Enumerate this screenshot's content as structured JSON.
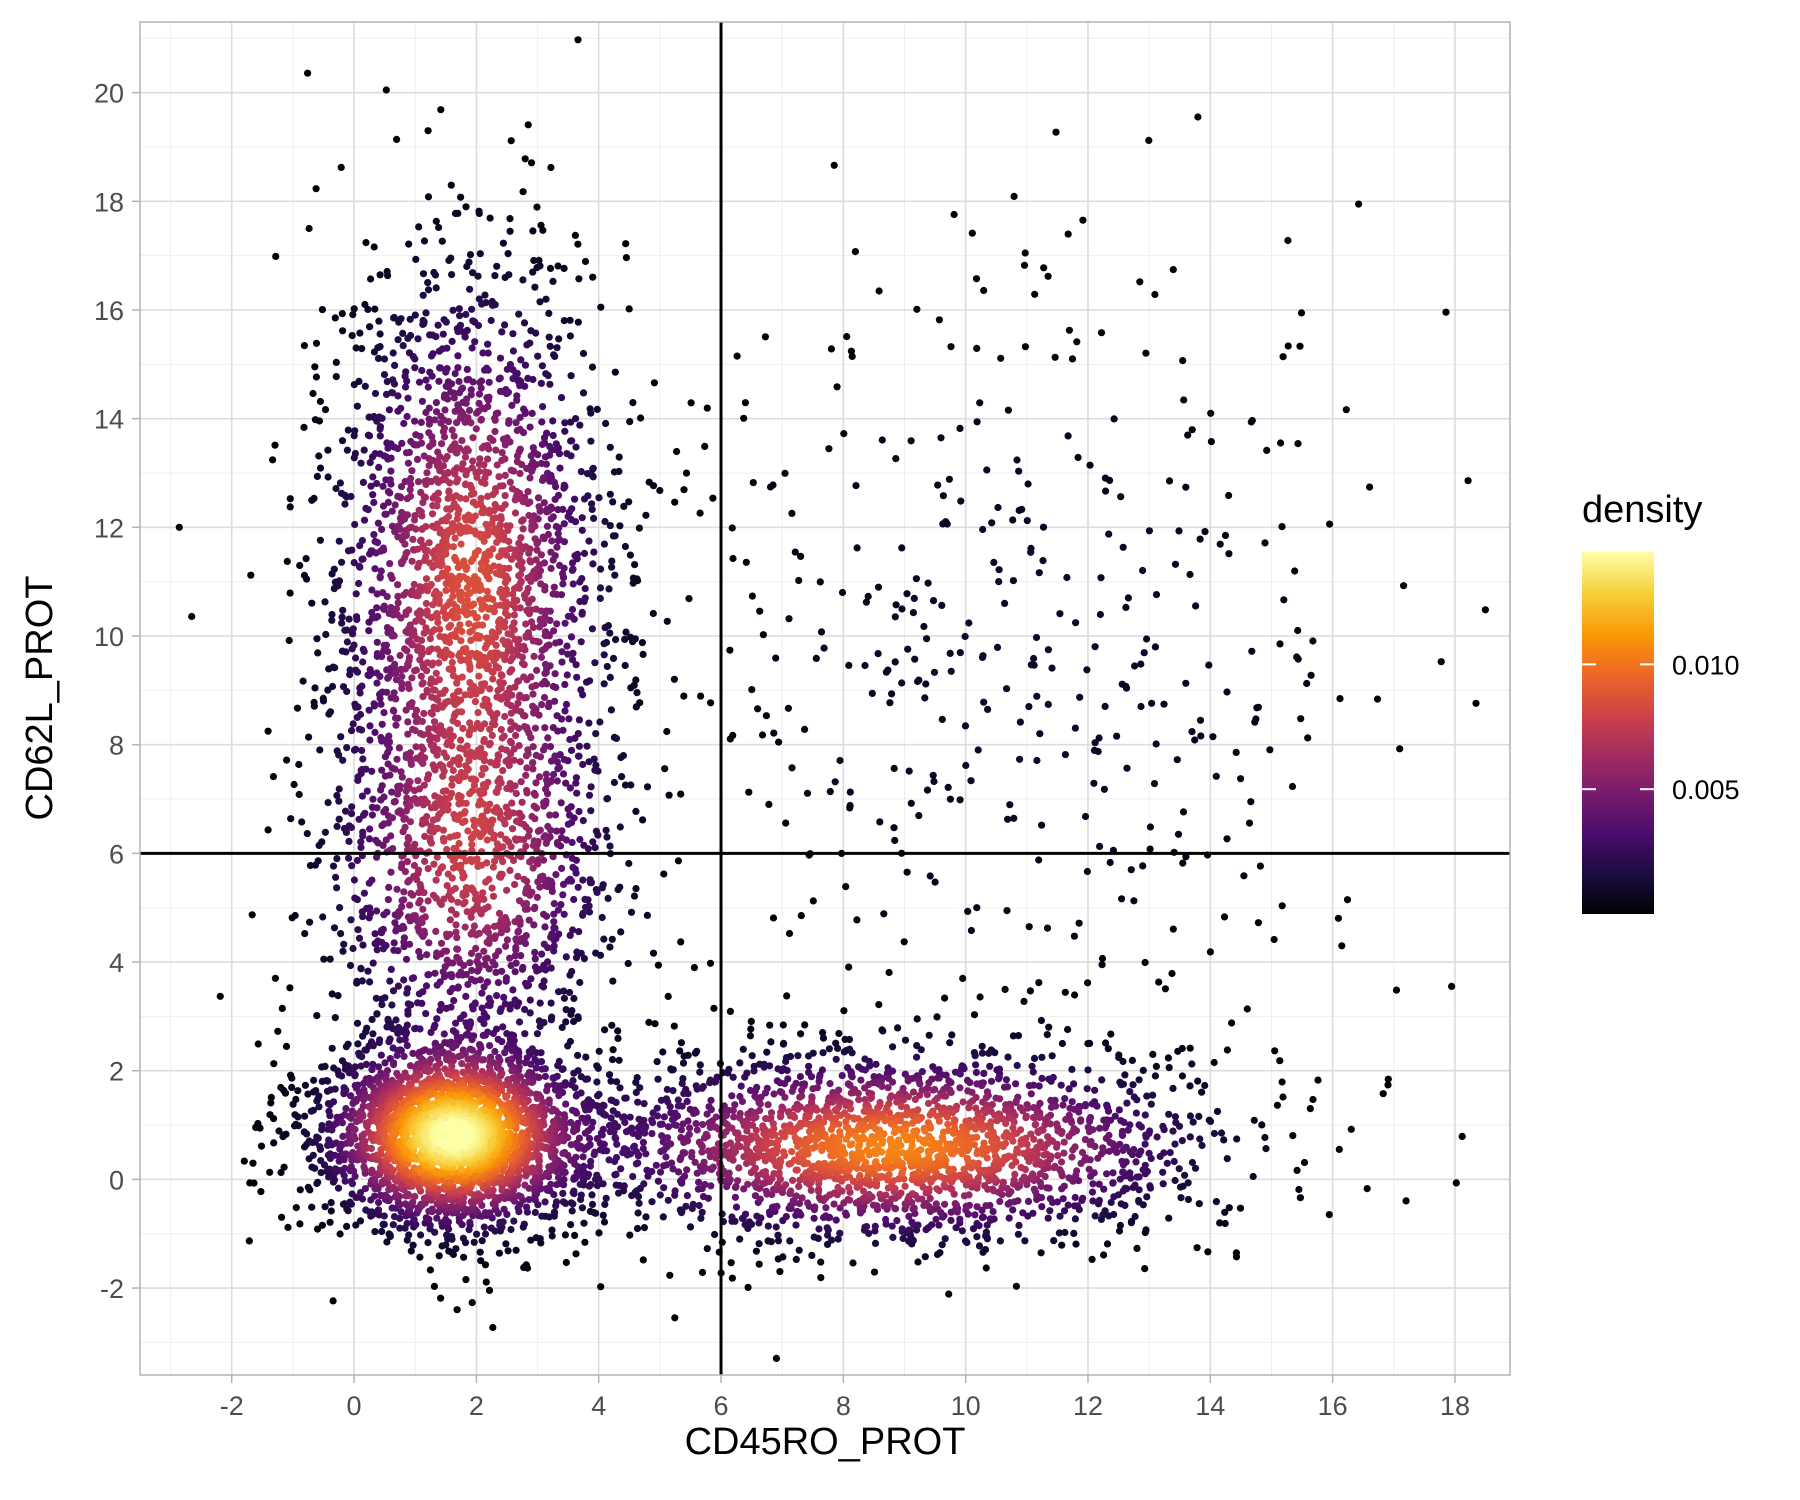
{
  "chart_data": {
    "type": "scatter",
    "title": "",
    "xlabel": "CD45RO_PROT",
    "ylabel": "CD62L_PROT",
    "xlim": [
      -3.5,
      18.9
    ],
    "ylim": [
      -3.6,
      21.3
    ],
    "x_ticks": [
      -2,
      0,
      2,
      4,
      6,
      8,
      10,
      12,
      14,
      16,
      18
    ],
    "y_ticks": [
      -2,
      0,
      2,
      4,
      6,
      8,
      10,
      12,
      14,
      16,
      18,
      20
    ],
    "x_tick_labels": [
      "-2",
      "0",
      "2",
      "4",
      "6",
      "8",
      "10",
      "12",
      "14",
      "16",
      "18"
    ],
    "y_tick_labels": [
      "-2",
      "0",
      "2",
      "4",
      "6",
      "8",
      "10",
      "12",
      "14",
      "16",
      "18",
      "20"
    ],
    "grid": true,
    "reference_lines": {
      "vertical_x": 6,
      "horizontal_y": 6
    },
    "legend": {
      "title": "density",
      "placement": "right",
      "colormap": "inferno",
      "range": [
        0,
        0.0145
      ],
      "breaks": [
        0.005,
        0.01
      ],
      "break_labels": [
        "0.005",
        "0.010"
      ]
    },
    "clusters": [
      {
        "name": "",
        "center": [
          1.6,
          0.8
        ],
        "sd": [
          1.1,
          0.9
        ],
        "n": 2600,
        "density_peak": 0.0145
      },
      {
        "name": "",
        "center": [
          8.8,
          0.6
        ],
        "sd": [
          2.6,
          0.9
        ],
        "n": 2300,
        "density_peak": 0.0105
      },
      {
        "name": "",
        "center": [
          1.9,
          11.0
        ],
        "sd": [
          1.2,
          3.0
        ],
        "n": 2200,
        "density_peak": 0.0085
      },
      {
        "name": "",
        "center": [
          1.9,
          5.5
        ],
        "sd": [
          1.3,
          1.8
        ],
        "n": 900,
        "density_peak": 0.006
      },
      {
        "name": "",
        "center": [
          11.0,
          9.5
        ],
        "sd": [
          3.2,
          4.0
        ],
        "n": 450,
        "density_peak": 0.001
      }
    ],
    "point_color_scale": [
      "#000004",
      "#1b0c41",
      "#4a0c6b",
      "#781c6d",
      "#a52c60",
      "#cf4446",
      "#ed6925",
      "#fb9b06",
      "#f7d13d",
      "#fcffa4"
    ]
  }
}
